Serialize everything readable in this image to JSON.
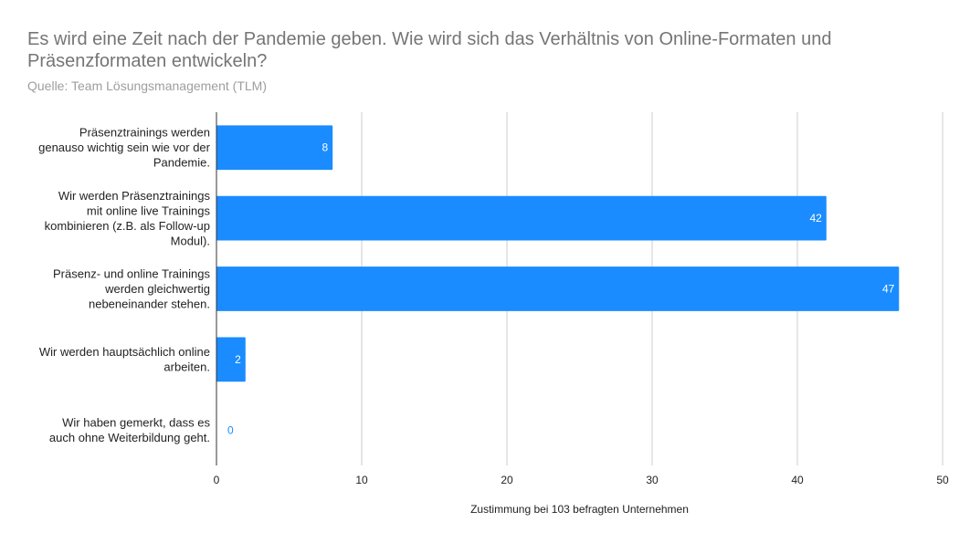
{
  "chart_data": {
    "type": "bar",
    "orientation": "horizontal",
    "title": "Es wird eine Zeit nach der Pandemie geben. Wie wird sich das Verhältnis von Online-Formaten und Präsenzformaten entwickeln?",
    "subtitle": "Quelle: Team Lösungsmanagement (TLM)",
    "categories": [
      [
        "Präsenztrainings werden",
        "genauso wichtig sein wie vor der",
        "Pandemie."
      ],
      [
        "Wir werden Präsenztrainings",
        "mit online live Trainings",
        "kombinieren (z.B. als Follow-up",
        "Modul)."
      ],
      [
        "Präsenz- und online Trainings",
        "werden gleichwertig",
        "nebeneinander stehen."
      ],
      [
        "Wir werden hauptsächlich online",
        "arbeiten."
      ],
      [
        "Wir haben gemerkt, dass es",
        "auch ohne Weiterbildung geht."
      ]
    ],
    "values": [
      8,
      42,
      47,
      2,
      0
    ],
    "data_labels": [
      "8",
      "42",
      "47",
      "2",
      "0"
    ],
    "xlabel": "Zustimmung bei 103 befragten Unternehmen",
    "ylabel": "",
    "xlim": [
      0,
      50
    ],
    "ticks": [
      0,
      10,
      20,
      30,
      40,
      50
    ],
    "grid": true,
    "legend": "none",
    "bar_color": "#1a8cff"
  }
}
